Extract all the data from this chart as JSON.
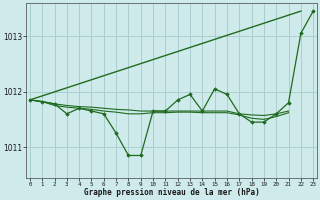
{
  "xlabel": "Graphe pression niveau de la mer (hPa)",
  "bg_color": "#ceeaea",
  "grid_color": "#aacfcf",
  "line_color": "#1f6b1f",
  "hours": [
    0,
    1,
    2,
    3,
    4,
    5,
    6,
    7,
    8,
    9,
    10,
    11,
    12,
    13,
    14,
    15,
    16,
    17,
    18,
    19,
    20,
    21,
    22,
    23
  ],
  "pressure_jagged": [
    1011.85,
    1011.82,
    1011.78,
    1011.6,
    1011.7,
    1011.65,
    1011.6,
    1011.25,
    1010.85,
    1010.85,
    1011.65,
    1011.65,
    1011.85,
    1011.95,
    1011.65,
    1012.05,
    1011.95,
    1011.6,
    1011.45,
    1011.45,
    1011.6,
    1011.8,
    1013.05,
    1013.45
  ],
  "pressure_flat_high": [
    1011.85,
    1011.82,
    1011.78,
    1011.75,
    1011.73,
    1011.72,
    1011.7,
    1011.68,
    1011.67,
    1011.65,
    1011.65,
    1011.65,
    1011.65,
    1011.65,
    1011.65,
    1011.65,
    1011.65,
    1011.6,
    1011.58,
    1011.57,
    1011.6,
    1011.65,
    1013.05,
    1013.45
  ],
  "pressure_flat_low": [
    1011.85,
    1011.82,
    1011.75,
    1011.72,
    1011.7,
    1011.68,
    1011.65,
    1011.63,
    1011.6,
    1011.6,
    1011.62,
    1011.62,
    1011.63,
    1011.63,
    1011.62,
    1011.62,
    1011.62,
    1011.58,
    1011.52,
    1011.5,
    1011.55,
    1011.62,
    1013.05,
    1013.45
  ],
  "ylim": [
    1010.45,
    1013.6
  ],
  "yticks": [
    1011,
    1012,
    1013
  ],
  "xlim": [
    -0.3,
    23.3
  ]
}
